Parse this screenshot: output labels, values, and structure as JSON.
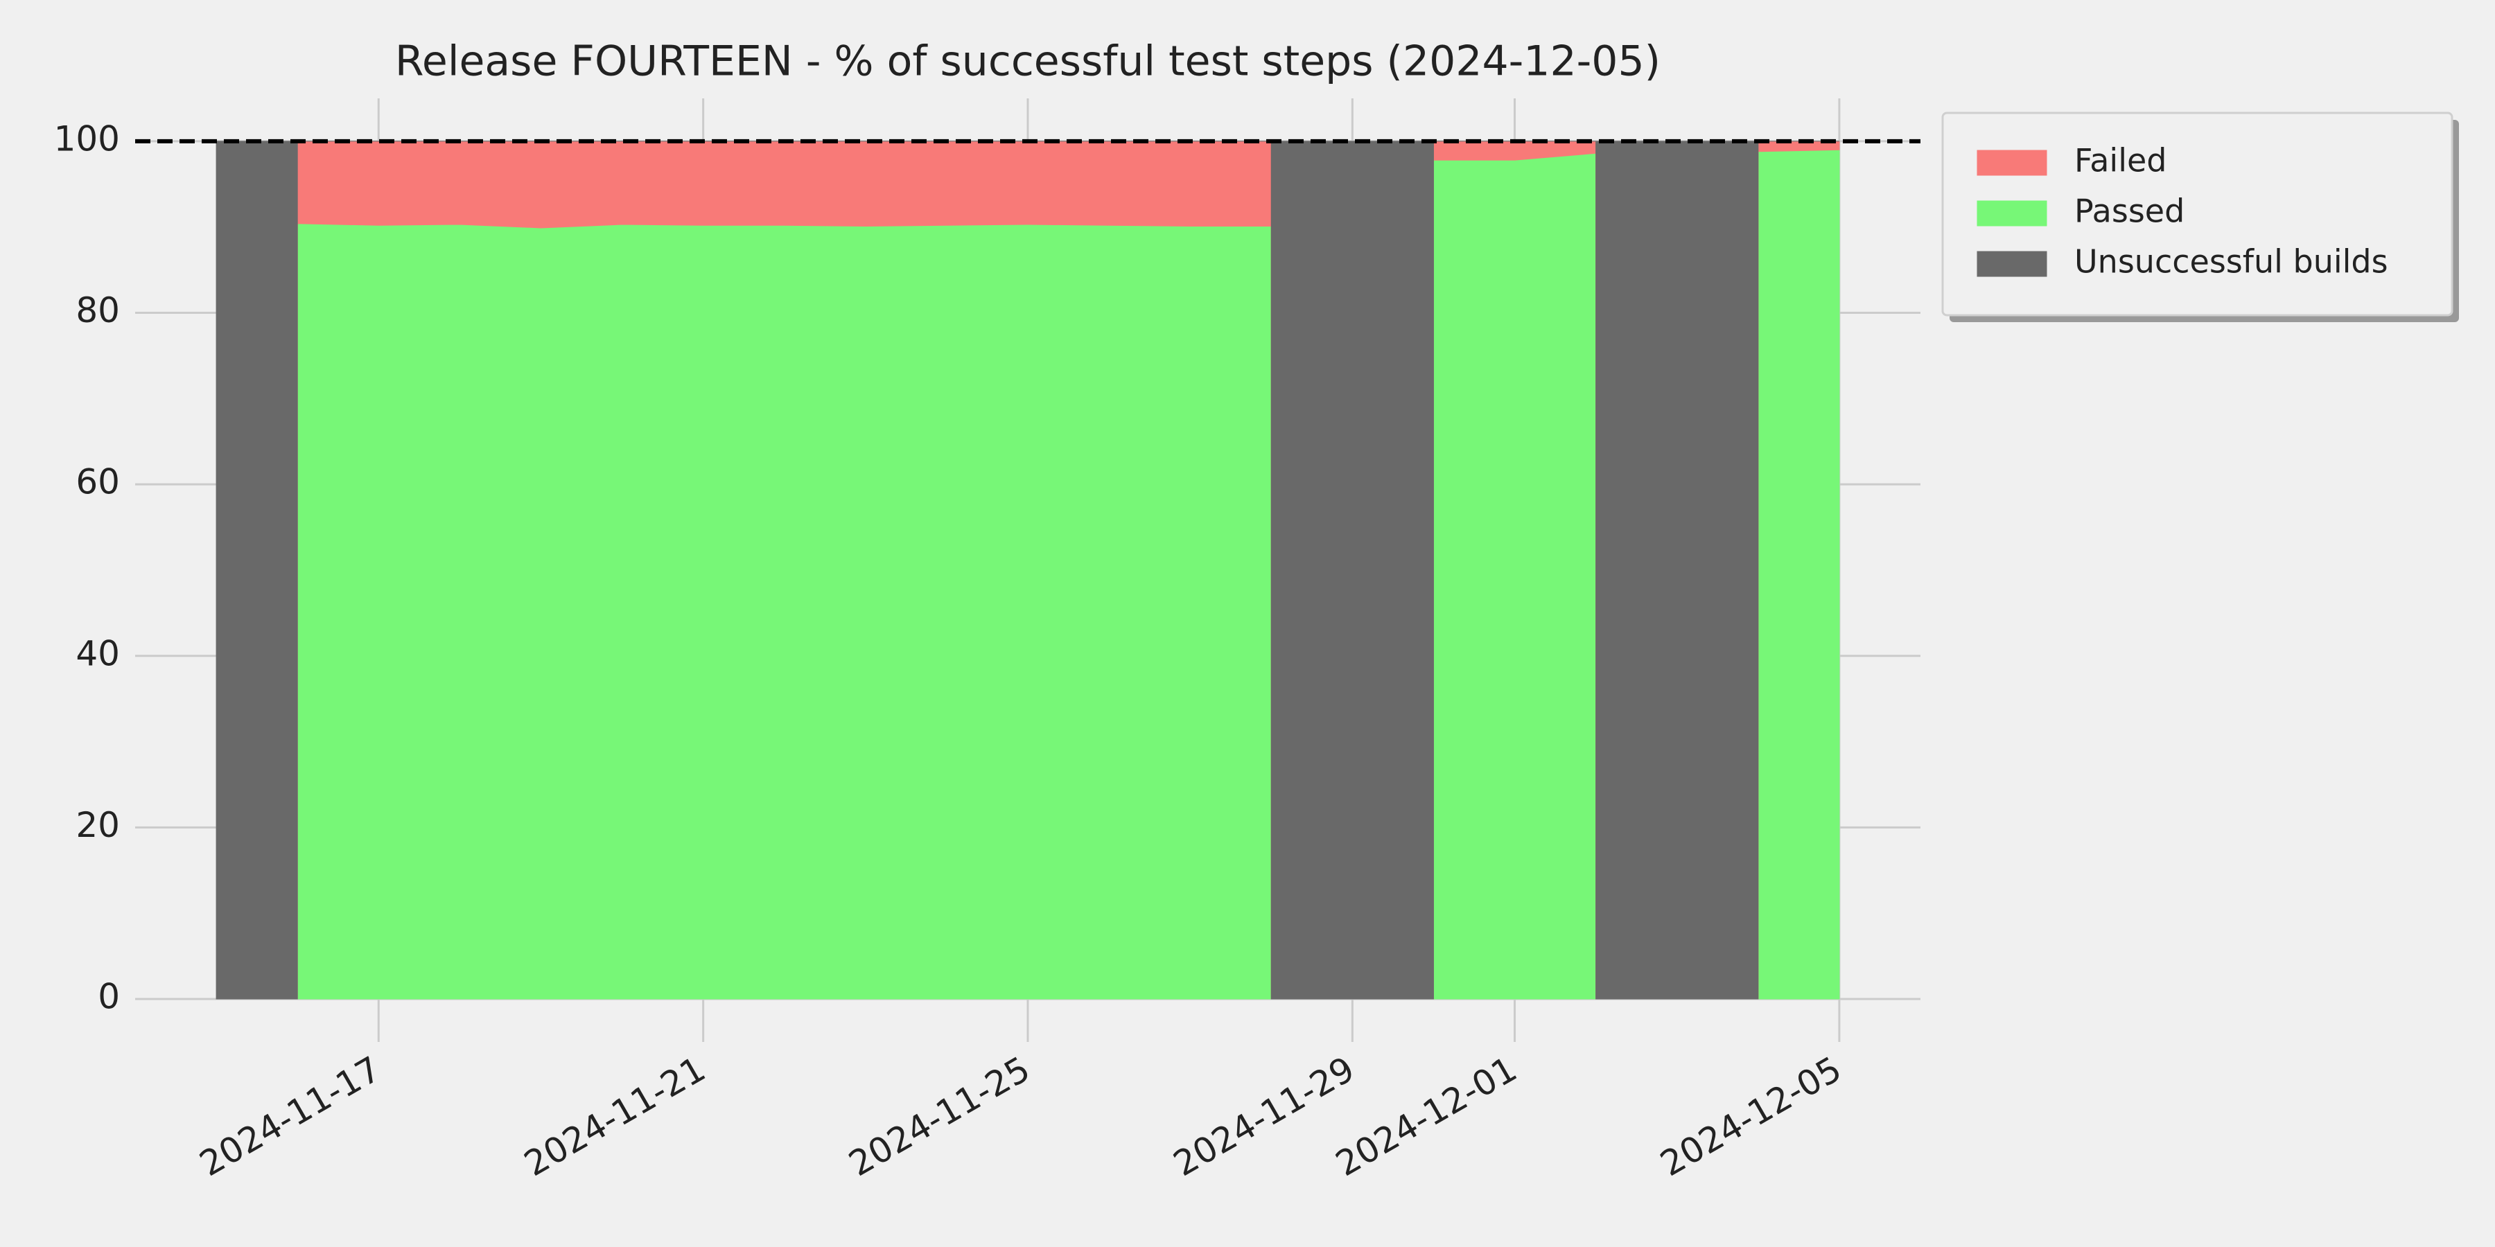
{
  "chart_data": {
    "type": "stacked_area",
    "title": "Release FOURTEEN - % of successful test steps (2024-12-05)",
    "x": [
      "2024-11-15",
      "2024-11-16",
      "2024-11-16",
      "2024-11-17",
      "2024-11-18",
      "2024-11-19",
      "2024-11-20",
      "2024-11-21",
      "2024-11-22",
      "2024-11-23",
      "2024-11-24",
      "2024-11-25",
      "2024-11-26",
      "2024-11-27",
      "2024-11-28",
      "2024-11-28",
      "2024-11-30",
      "2024-11-30",
      "2024-12-01",
      "2024-12-02",
      "2024-12-02",
      "2024-12-04",
      "2024-12-04",
      "2024-12-05"
    ],
    "series": [
      {
        "name": "Failed",
        "color": "#f87a78",
        "values": [
          0,
          0,
          9.6,
          9.8,
          9.7,
          10.1,
          9.7,
          9.8,
          9.8,
          9.9,
          9.8,
          9.7,
          9.8,
          9.9,
          9.9,
          0,
          0,
          2.2,
          2.2,
          1.4,
          0,
          0,
          1.2,
          1.0
        ]
      },
      {
        "name": "Passed",
        "color": "#77f777",
        "values": [
          0,
          0,
          90.4,
          90.2,
          90.3,
          89.9,
          90.3,
          90.2,
          90.2,
          90.1,
          90.2,
          90.3,
          90.2,
          90.1,
          90.1,
          0,
          0,
          97.8,
          97.8,
          98.6,
          0,
          0,
          98.8,
          99.0
        ]
      },
      {
        "name": "Unsuccessful builds",
        "color": "#696969",
        "values": [
          100,
          100,
          0,
          0,
          0,
          0,
          0,
          0,
          0,
          0,
          0,
          0,
          0,
          0,
          0,
          100,
          100,
          0,
          0,
          0,
          100,
          100,
          0,
          0
        ]
      }
    ],
    "stack_order": [
      1,
      0,
      2
    ],
    "xlim": [
      "2024-11-14",
      "2024-12-06"
    ],
    "xticks": [
      "2024-11-17",
      "2024-11-21",
      "2024-11-25",
      "2024-11-29",
      "2024-12-01",
      "2024-12-05"
    ],
    "ylim": [
      0,
      105
    ],
    "yticks": [
      0,
      20,
      40,
      60,
      80,
      100
    ],
    "hline": 100,
    "grid": true,
    "legend": "outside-upper-right"
  }
}
